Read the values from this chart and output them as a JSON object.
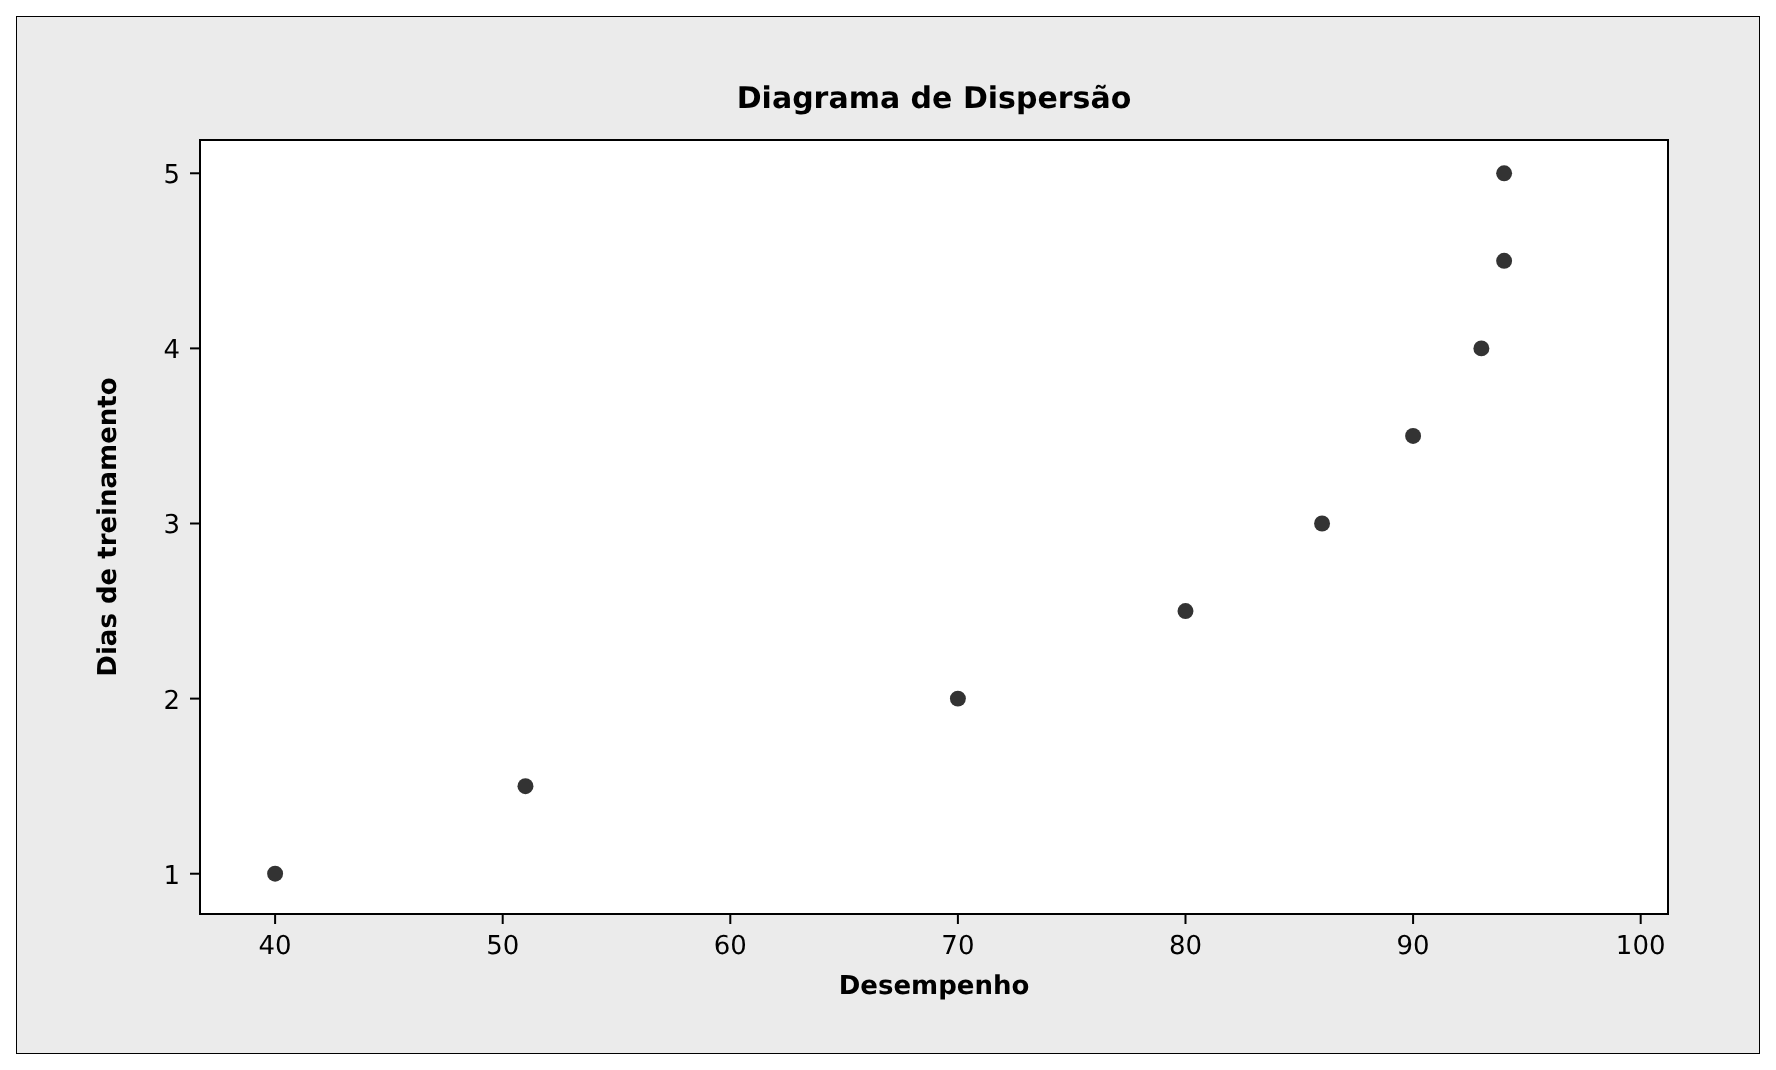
{
  "chart_data": {
    "type": "scatter",
    "title": "Diagrama de Dispersão",
    "xlabel": "Desempenho",
    "ylabel": "Dias de treinamento",
    "x": [
      40,
      51,
      70,
      80,
      86,
      90,
      93,
      94,
      94
    ],
    "series": [
      {
        "color": "#333333",
        "values": [
          1,
          1.5,
          2,
          2.5,
          3,
          3.5,
          4,
          4.5,
          5
        ]
      }
    ],
    "xlim": [
      36.7,
      101.2
    ],
    "xticks": [
      40,
      50,
      60,
      70,
      80,
      90,
      100
    ],
    "ylim": [
      0.77,
      5.19
    ],
    "yticks": [
      1,
      2,
      3,
      4,
      5
    ],
    "marker": "circle",
    "grid": false
  }
}
